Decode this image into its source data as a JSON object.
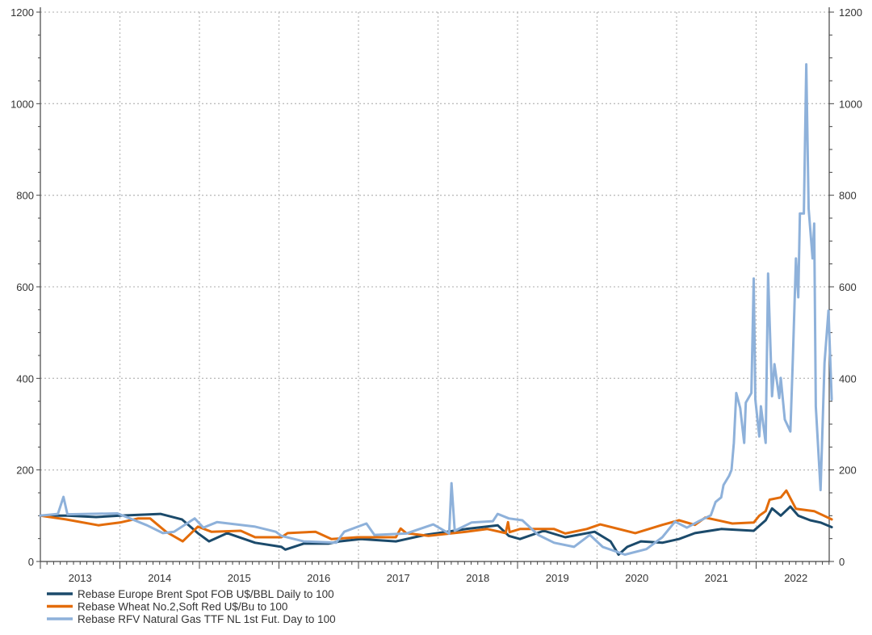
{
  "chart_data": {
    "type": "line",
    "title": "",
    "xlabel": "",
    "ylabel": "",
    "xlim": [
      2013.0,
      2022.95
    ],
    "ylim": [
      0,
      1200
    ],
    "y_ticks": [
      0,
      200,
      400,
      600,
      800,
      1000,
      1200
    ],
    "y_ticks_right": [
      0,
      200,
      400,
      600,
      800,
      1000,
      1200
    ],
    "x_tick_labels": [
      "2013",
      "2014",
      "2015",
      "2016",
      "2017",
      "2018",
      "2019",
      "2020",
      "2021",
      "2022"
    ],
    "grid": true,
    "legend_placement": "bottom-left",
    "series": [
      {
        "name": "Rebase Europe Brent Spot FOB U$/BBL Daily to 100",
        "color": "#1b4a6b",
        "points": [
          [
            2013.0,
            100
          ],
          [
            2013.34,
            100
          ],
          [
            2013.7,
            97
          ],
          [
            2014.0,
            100
          ],
          [
            2014.51,
            104
          ],
          [
            2014.78,
            92
          ],
          [
            2014.98,
            62
          ],
          [
            2015.12,
            44
          ],
          [
            2015.35,
            62
          ],
          [
            2015.7,
            41
          ],
          [
            2016.03,
            32
          ],
          [
            2016.08,
            26
          ],
          [
            2016.31,
            39
          ],
          [
            2016.62,
            39
          ],
          [
            2016.76,
            44
          ],
          [
            2017.03,
            49
          ],
          [
            2017.47,
            44
          ],
          [
            2017.84,
            58
          ],
          [
            2018.35,
            71
          ],
          [
            2018.75,
            79
          ],
          [
            2018.89,
            56
          ],
          [
            2019.03,
            49
          ],
          [
            2019.33,
            67
          ],
          [
            2019.6,
            53
          ],
          [
            2019.97,
            65
          ],
          [
            2020.17,
            44
          ],
          [
            2020.27,
            15
          ],
          [
            2020.38,
            32
          ],
          [
            2020.55,
            44
          ],
          [
            2020.82,
            41
          ],
          [
            2021.03,
            49
          ],
          [
            2021.23,
            62
          ],
          [
            2021.56,
            71
          ],
          [
            2021.97,
            67
          ],
          [
            2022.12,
            90
          ],
          [
            2022.2,
            116
          ],
          [
            2022.31,
            100
          ],
          [
            2022.43,
            120
          ],
          [
            2022.53,
            100
          ],
          [
            2022.68,
            90
          ],
          [
            2022.81,
            85
          ],
          [
            2022.95,
            75
          ]
        ]
      },
      {
        "name": "Rebase Wheat No.2,Soft Red U$/Bu to 100",
        "color": "#e36c0a",
        "points": [
          [
            2013.0,
            100
          ],
          [
            2013.32,
            92
          ],
          [
            2013.73,
            79
          ],
          [
            2014.0,
            85
          ],
          [
            2014.23,
            94
          ],
          [
            2014.38,
            94
          ],
          [
            2014.58,
            65
          ],
          [
            2014.79,
            44
          ],
          [
            2014.98,
            76
          ],
          [
            2015.15,
            65
          ],
          [
            2015.52,
            67
          ],
          [
            2015.7,
            53
          ],
          [
            2016.03,
            53
          ],
          [
            2016.11,
            62
          ],
          [
            2016.46,
            65
          ],
          [
            2016.66,
            49
          ],
          [
            2016.99,
            53
          ],
          [
            2017.47,
            53
          ],
          [
            2017.53,
            72
          ],
          [
            2017.6,
            62
          ],
          [
            2017.88,
            56
          ],
          [
            2018.35,
            65
          ],
          [
            2018.62,
            71
          ],
          [
            2018.85,
            62
          ],
          [
            2018.88,
            86
          ],
          [
            2018.9,
            64
          ],
          [
            2019.03,
            71
          ],
          [
            2019.46,
            71
          ],
          [
            2019.6,
            61
          ],
          [
            2019.87,
            71
          ],
          [
            2020.04,
            81
          ],
          [
            2020.48,
            62
          ],
          [
            2020.82,
            80
          ],
          [
            2021.03,
            90
          ],
          [
            2021.23,
            80
          ],
          [
            2021.36,
            96
          ],
          [
            2021.7,
            83
          ],
          [
            2021.97,
            85
          ],
          [
            2022.04,
            100
          ],
          [
            2022.12,
            110
          ],
          [
            2022.17,
            135
          ],
          [
            2022.31,
            140
          ],
          [
            2022.38,
            155
          ],
          [
            2022.5,
            115
          ],
          [
            2022.73,
            110
          ],
          [
            2022.95,
            92
          ]
        ]
      },
      {
        "name": "Rebase RFV Natural Gas TTF NL 1st Fut. Day to 100",
        "color": "#8eb1da",
        "points": [
          [
            2013.0,
            100
          ],
          [
            2013.22,
            104
          ],
          [
            2013.29,
            141
          ],
          [
            2013.34,
            103
          ],
          [
            2013.97,
            105
          ],
          [
            2014.34,
            79
          ],
          [
            2014.54,
            62
          ],
          [
            2014.68,
            65
          ],
          [
            2014.94,
            94
          ],
          [
            2015.05,
            74
          ],
          [
            2015.22,
            86
          ],
          [
            2015.7,
            76
          ],
          [
            2015.96,
            65
          ],
          [
            2016.03,
            56
          ],
          [
            2016.31,
            44
          ],
          [
            2016.72,
            41
          ],
          [
            2016.82,
            65
          ],
          [
            2017.1,
            83
          ],
          [
            2017.2,
            58
          ],
          [
            2017.6,
            61
          ],
          [
            2017.94,
            81
          ],
          [
            2018.14,
            61
          ],
          [
            2018.17,
            171
          ],
          [
            2018.21,
            67
          ],
          [
            2018.42,
            85
          ],
          [
            2018.69,
            88
          ],
          [
            2018.75,
            104
          ],
          [
            2018.89,
            94
          ],
          [
            2019.06,
            90
          ],
          [
            2019.26,
            58
          ],
          [
            2019.46,
            41
          ],
          [
            2019.71,
            32
          ],
          [
            2019.91,
            58
          ],
          [
            2020.07,
            32
          ],
          [
            2020.35,
            15
          ],
          [
            2020.62,
            27
          ],
          [
            2020.82,
            53
          ],
          [
            2020.98,
            87
          ],
          [
            2021.13,
            74
          ],
          [
            2021.29,
            89
          ],
          [
            2021.43,
            101
          ],
          [
            2021.49,
            130
          ],
          [
            2021.56,
            140
          ],
          [
            2021.59,
            167
          ],
          [
            2021.66,
            187
          ],
          [
            2021.69,
            200
          ],
          [
            2021.72,
            259
          ],
          [
            2021.75,
            368
          ],
          [
            2021.8,
            335
          ],
          [
            2021.85,
            259
          ],
          [
            2021.87,
            347
          ],
          [
            2021.94,
            368
          ],
          [
            2021.97,
            618
          ],
          [
            2021.99,
            354
          ],
          [
            2022.04,
            273
          ],
          [
            2022.06,
            339
          ],
          [
            2022.12,
            259
          ],
          [
            2022.15,
            629
          ],
          [
            2022.2,
            361
          ],
          [
            2022.23,
            431
          ],
          [
            2022.29,
            357
          ],
          [
            2022.31,
            401
          ],
          [
            2022.36,
            310
          ],
          [
            2022.43,
            284
          ],
          [
            2022.46,
            434
          ],
          [
            2022.5,
            662
          ],
          [
            2022.53,
            577
          ],
          [
            2022.55,
            760
          ],
          [
            2022.6,
            760
          ],
          [
            2022.63,
            1086
          ],
          [
            2022.66,
            771
          ],
          [
            2022.71,
            662
          ],
          [
            2022.73,
            738
          ],
          [
            2022.75,
            339
          ],
          [
            2022.81,
            156
          ],
          [
            2022.86,
            434
          ],
          [
            2022.91,
            548
          ],
          [
            2022.95,
            354
          ]
        ]
      }
    ]
  }
}
